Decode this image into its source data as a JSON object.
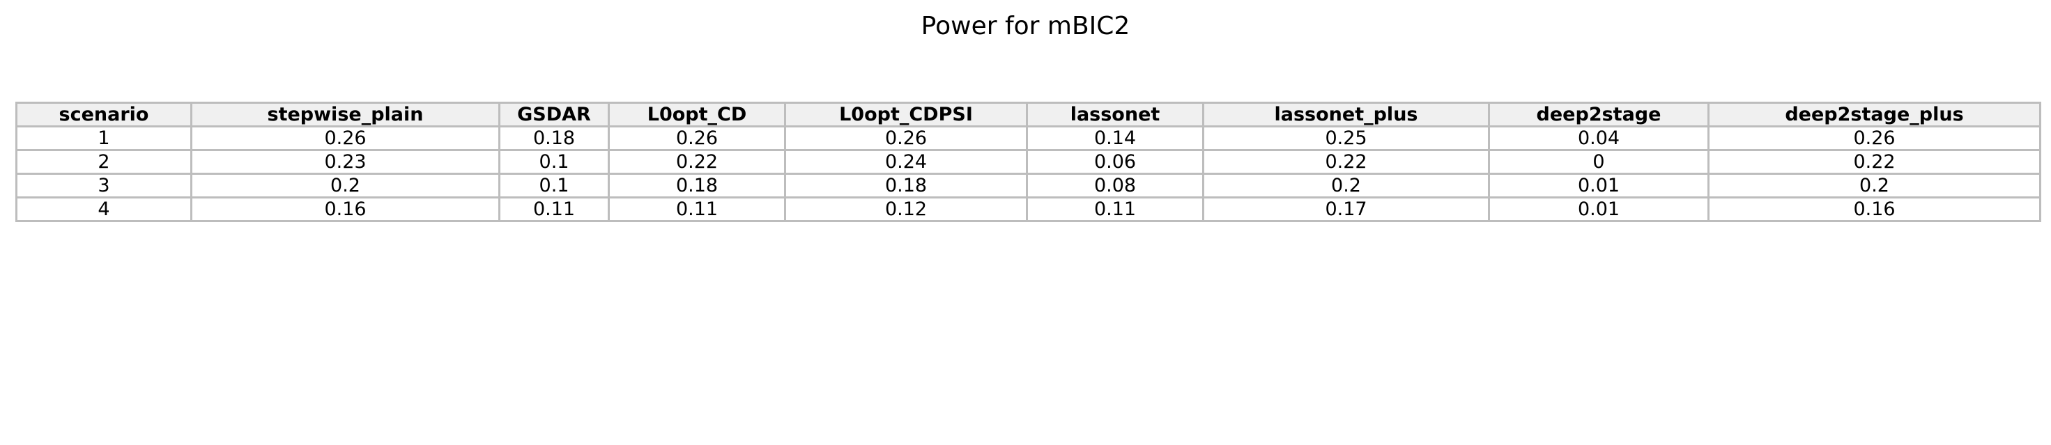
{
  "chart_data": {
    "type": "table",
    "title": "Power for mBIC2",
    "columns": [
      "scenario",
      "stepwise_plain",
      "GSDAR",
      "L0opt_CD",
      "L0opt_CDPSI",
      "lassonet",
      "lassonet_plus",
      "deep2stage",
      "deep2stage_plus"
    ],
    "rows": [
      [
        "1",
        "0.26",
        "0.18",
        "0.26",
        "0.26",
        "0.14",
        "0.25",
        "0.04",
        "0.26"
      ],
      [
        "2",
        "0.23",
        "0.1",
        "0.22",
        "0.24",
        "0.06",
        "0.22",
        "0",
        "0.22"
      ],
      [
        "3",
        "0.2",
        "0.1",
        "0.18",
        "0.18",
        "0.08",
        "0.2",
        "0.01",
        "0.2"
      ],
      [
        "4",
        "0.16",
        "0.11",
        "0.11",
        "0.12",
        "0.11",
        "0.17",
        "0.01",
        "0.16"
      ]
    ]
  }
}
